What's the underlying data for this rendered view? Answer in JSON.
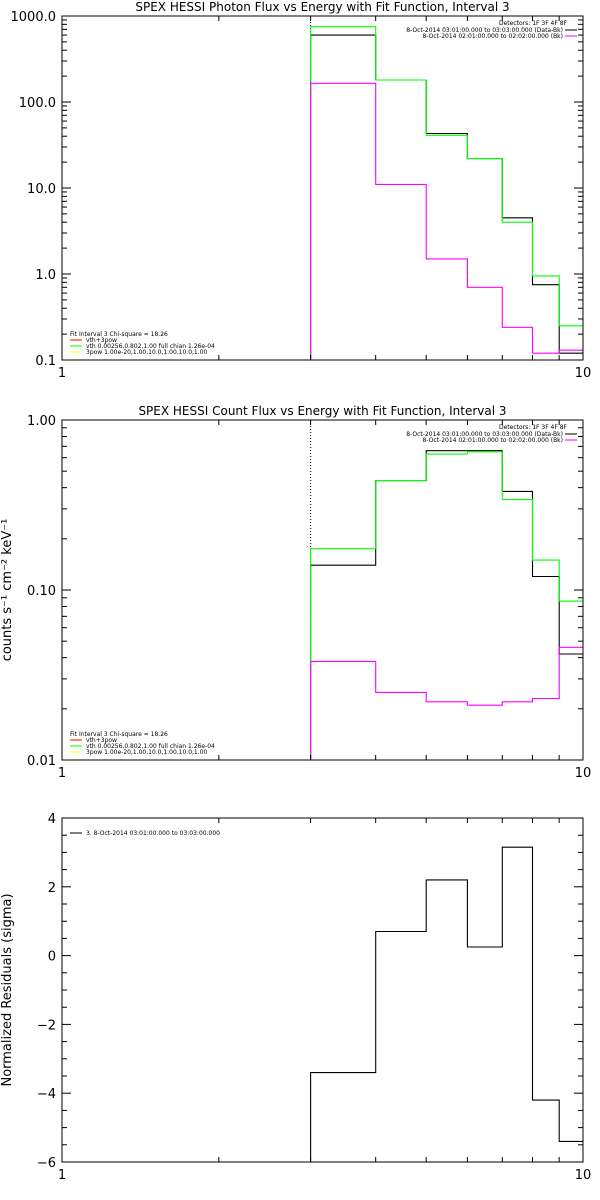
{
  "chart_data": [
    {
      "type": "line",
      "step": true,
      "title": "SPEX HESSI Photon Flux vs Energy with Fit Function, Interval 3",
      "xscale": "log",
      "yscale": "log",
      "xlim": [
        1,
        10
      ],
      "ylim": [
        0.1,
        1000
      ],
      "xticks": [
        {
          "v": 1,
          "label": "1"
        },
        {
          "v": 10,
          "label": "10"
        }
      ],
      "yticks": [
        {
          "v": 0.1,
          "label": "0.1"
        },
        {
          "v": 1,
          "label": "1.0"
        },
        {
          "v": 10,
          "label": "10.0"
        },
        {
          "v": 100,
          "label": "100.0"
        },
        {
          "v": 1000,
          "label": "1000.0"
        }
      ],
      "vline": 3,
      "legend_tr": {
        "header": "Detectors: 1F 3F 4F 8F",
        "items": [
          {
            "text": "8-Oct-2014 03:01:00.000 to 03:03:00.000 (Data-Bk)",
            "color": "#000000"
          },
          {
            "text": "8-Oct-2014 02:01:00.000 to 02:02:00.000 (Bk)",
            "color": "#ff00ff"
          }
        ]
      },
      "legend_bl": {
        "items": [
          {
            "text": "Fit Interval 3   Chi-square = 18.26",
            "color": null
          },
          {
            "text": "vth+3pow",
            "color": "#ff0000"
          },
          {
            "text": "vth 0.00256,0.802,1.00  full chian 1.26e-04",
            "color": "#00ff00"
          },
          {
            "text": "3pow 1.00e-20,1.00,10.0,1.00,10.0,1.00",
            "color": "#ffff00"
          }
        ]
      },
      "edges": [
        3,
        4,
        5,
        6,
        7,
        8,
        9,
        10
      ],
      "series": [
        {
          "color": "#000000",
          "values": [
            600,
            180,
            43,
            22,
            4.5,
            0.75,
            0.12
          ]
        },
        {
          "color": "#00ff00",
          "values": [
            750,
            180,
            41,
            22,
            4.0,
            0.95,
            0.25
          ]
        },
        {
          "color": "#ff00ff",
          "values": [
            165,
            11,
            1.5,
            0.7,
            0.24,
            0.12,
            0.13
          ]
        }
      ]
    },
    {
      "type": "line",
      "step": true,
      "title": "SPEX HESSI Count Flux vs Energy with Fit Function, Interval 3",
      "ylabel": "counts s⁻¹ cm⁻² keV⁻¹",
      "xscale": "log",
      "yscale": "log",
      "xlim": [
        1,
        10
      ],
      "ylim": [
        0.01,
        1
      ],
      "xticks": [
        {
          "v": 1,
          "label": "1"
        },
        {
          "v": 10,
          "label": "10"
        }
      ],
      "yticks": [
        {
          "v": 0.01,
          "label": "0.01"
        },
        {
          "v": 0.1,
          "label": "0.10"
        },
        {
          "v": 1,
          "label": "1.00"
        }
      ],
      "vline": 3,
      "legend_tr": {
        "header": "Detectors: 1F 3F 4F 8F",
        "items": [
          {
            "text": "8-Oct-2014 03:01:00.000 to 03:03:00.000 (Data-Bk)",
            "color": "#000000"
          },
          {
            "text": "8-Oct-2014 02:01:00.000 to 02:02:00.000 (Bk)",
            "color": "#ff00ff"
          }
        ]
      },
      "legend_bl": {
        "items": [
          {
            "text": "Fit Interval 3   Chi-square = 18.26",
            "color": null
          },
          {
            "text": "vth+3pow",
            "color": "#ff0000"
          },
          {
            "text": "vth 0.00256,0.802,1.00  full chian 1.26e-04",
            "color": "#00ff00"
          },
          {
            "text": "3pow 1.00e-20,1.00,10.0,1.00,10.0,1.00",
            "color": "#ffff00"
          }
        ]
      },
      "edges": [
        3,
        4,
        5,
        6,
        7,
        8,
        9,
        10
      ],
      "series": [
        {
          "color": "#000000",
          "values": [
            0.14,
            0.44,
            0.66,
            0.66,
            0.38,
            0.12,
            0.042
          ]
        },
        {
          "color": "#00ff00",
          "values": [
            0.175,
            0.44,
            0.63,
            0.65,
            0.34,
            0.15,
            0.086
          ]
        },
        {
          "color": "#ff00ff",
          "values": [
            0.038,
            0.025,
            0.022,
            0.021,
            0.022,
            0.023,
            0.046
          ]
        }
      ]
    },
    {
      "type": "line",
      "step": true,
      "ylabel": "Normalized Residuals (sigma)",
      "xscale": "log",
      "yscale": "linear",
      "xlim": [
        1,
        10
      ],
      "ylim": [
        -6,
        4
      ],
      "xticks": [
        {
          "v": 1,
          "label": "1"
        },
        {
          "v": 10,
          "label": "10"
        }
      ],
      "yticks": [
        {
          "v": -6,
          "label": "−6"
        },
        {
          "v": -4,
          "label": "−4"
        },
        {
          "v": -2,
          "label": "−2"
        },
        {
          "v": 0,
          "label": "0"
        },
        {
          "v": 2,
          "label": "2"
        },
        {
          "v": 4,
          "label": "4"
        }
      ],
      "legend_tl": {
        "items": [
          {
            "text": "3.  8-Oct-2014 03:01:00.000 to 03:03:00.000",
            "color": "#000000"
          }
        ]
      },
      "edges": [
        3,
        4,
        5,
        6,
        7,
        8,
        9,
        10
      ],
      "series": [
        {
          "color": "#000000",
          "values": [
            -3.4,
            0.7,
            2.2,
            0.25,
            3.15,
            -4.2,
            -5.4
          ]
        }
      ]
    }
  ]
}
